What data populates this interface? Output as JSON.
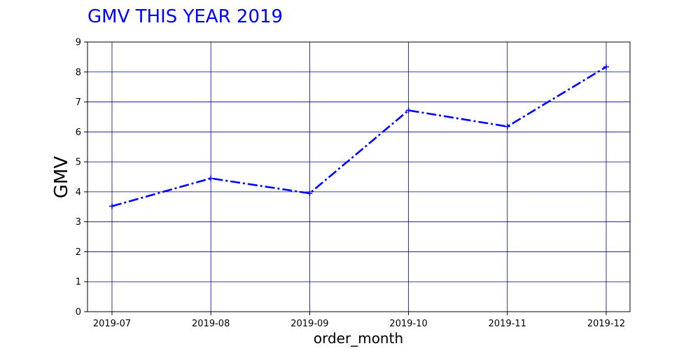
{
  "chart_data": {
    "type": "line",
    "title": "GMV THIS YEAR 2019",
    "xlabel": "order_month",
    "ylabel": "GMV",
    "categories": [
      "2019-07",
      "2019-08",
      "2019-09",
      "2019-10",
      "2019-11",
      "2019-12"
    ],
    "series": [
      {
        "values": [
          3.52,
          4.45,
          3.95,
          6.72,
          6.18,
          8.17
        ]
      }
    ],
    "yticks": [
      "0",
      "1",
      "2",
      "3",
      "4",
      "5",
      "6",
      "7",
      "8",
      "9"
    ],
    "ylim": [
      0,
      9
    ],
    "grid": true,
    "legend": "none",
    "line_style": "dash-dot",
    "marker": "plus",
    "colors": {
      "title": "#0000ff",
      "line": "#0000ff",
      "grid": "#00008b",
      "axis": "#000000"
    }
  }
}
